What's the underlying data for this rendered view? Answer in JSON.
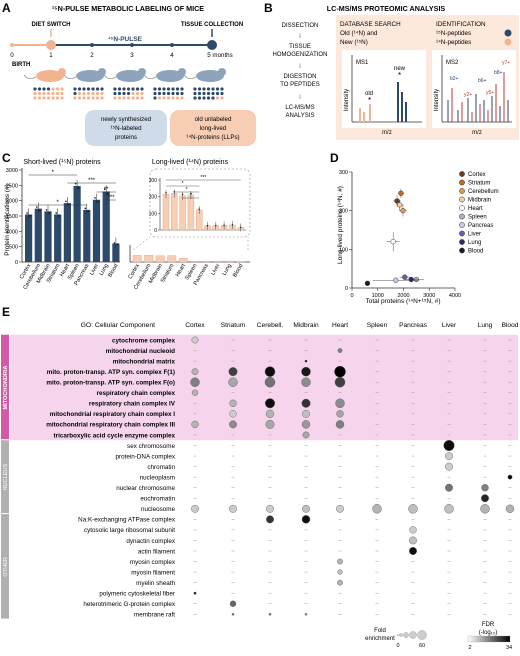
{
  "panel_a": {
    "letter": "A",
    "title": "¹⁵N-PULSE METABOLIC LABELING OF MICE",
    "diet_switch": "DIET SWITCH",
    "pulse": "¹⁵N-PULSE",
    "tissue_collection": "TISSUE COLLECTION",
    "birth": "BIRTH",
    "timeline": [
      "0",
      "1",
      "2",
      "3",
      "4",
      "5 months"
    ],
    "new_box": [
      "newly synthesized",
      "¹⁵N-labeled",
      "proteins"
    ],
    "old_box": [
      "old unlabeled",
      "long-lived",
      "¹⁴N-proteins (LLPs)"
    ],
    "colors": {
      "new": "#2d4a6b",
      "old": "#f2b48f",
      "old_fill": "#f7cdb3",
      "new_fill": "#cfdbe8"
    }
  },
  "panel_b": {
    "letter": "B",
    "title": "LC-MS/MS PROTEOMIC ANALYSIS",
    "steps": [
      "DISSECTION",
      "TISSUE",
      "HOMOGENIZATION",
      "DIGESTION",
      "TO PEPTIDES",
      "LC-MS/MS",
      "ANALYSIS"
    ],
    "db_search": [
      "DATABASE SEARCH",
      "Old (¹⁴N) and",
      "New (¹⁵N)"
    ],
    "identification": [
      "IDENTIFICATION",
      "¹⁵N-peptides",
      "¹⁴N-peptides"
    ],
    "ms1": "MS1",
    "ms2": "MS2",
    "old_label": "old",
    "new_label": "new",
    "intensity": "Intensity",
    "mz": "m/z",
    "ions": [
      "b2+",
      "y2+",
      "b6+",
      "y5+",
      "b8+",
      "y7+"
    ]
  },
  "panel_c": {
    "letter": "C",
    "ylabel": "Protein identifications (#)",
    "short_title": "Short-lived (¹⁵N) proteins",
    "long_title": "Long-lived (¹⁴N) proteins",
    "sig": [
      "*",
      "***",
      "**",
      "***",
      "*"
    ],
    "chart_data": {
      "type": "bar",
      "categories": [
        "Cortex",
        "Cerebellum",
        "Midbrain",
        "Striatum",
        "Heart",
        "Spleen",
        "Pancreas",
        "Liver",
        "Lung",
        "Blood"
      ],
      "yticks": [
        "0",
        "500",
        "1000",
        "1500",
        "2000",
        "2500",
        "3000"
      ],
      "ylim": [
        0,
        3000
      ],
      "inset_yticks": [
        "0",
        "100",
        "200",
        "300"
      ],
      "inset_ylim": [
        0,
        300
      ],
      "series": [
        {
          "values": [
            1550,
            1740,
            1650,
            1550,
            1920,
            2480,
            1700,
            2030,
            2300,
            600
          ]
        },
        {
          "values": [
            215,
            220,
            205,
            210,
            120,
            25,
            25,
            28,
            30,
            15
          ]
        }
      ]
    }
  },
  "panel_d": {
    "letter": "D",
    "xlabel": "Total proteins (¹⁴N+¹⁵N, #)",
    "ylabel": "Long-lived proteins (¹⁴N, #)",
    "chart_data": {
      "type": "scatter",
      "xticks": [
        "0",
        "1000",
        "2000",
        "3000",
        "4000"
      ],
      "yticks": [
        "0",
        "100",
        "200",
        "300"
      ],
      "xlim": [
        0,
        4000
      ],
      "ylim": [
        0,
        300
      ],
      "legend_position": "right",
      "series": [
        {
          "name": "Cortex",
          "color": "#6b3d1d",
          "x": 1750,
          "y": 225,
          "xerr": 150,
          "yerr": 15
        },
        {
          "name": "Striatum",
          "color": "#c06820",
          "x": 1900,
          "y": 245,
          "xerr": 120,
          "yerr": 12
        },
        {
          "name": "Cerebellum",
          "color": "#e09a4a",
          "x": 1980,
          "y": 200,
          "xerr": 150,
          "yerr": 15
        },
        {
          "name": "Midbrain",
          "color": "#f4cfa0",
          "x": 1850,
          "y": 215,
          "xerr": 140,
          "yerr": 14
        },
        {
          "name": "Heart",
          "color": "#ffffff",
          "x": 1600,
          "y": 120,
          "xerr": 250,
          "yerr": 25
        },
        {
          "name": "Spleen",
          "color": "#aab4c8",
          "x": 2500,
          "y": 22,
          "xerr": 300,
          "yerr": 5
        },
        {
          "name": "Pancreas",
          "color": "#c5cbe6",
          "x": 1700,
          "y": 20,
          "xerr": 900,
          "yerr": 5
        },
        {
          "name": "Liver",
          "color": "#6a5fa8",
          "x": 2050,
          "y": 28,
          "xerr": 200,
          "yerr": 5
        },
        {
          "name": "Lung",
          "color": "#2e2a6b",
          "x": 2300,
          "y": 22,
          "xerr": 300,
          "yerr": 5
        },
        {
          "name": "Blood",
          "color": "#1a1a2e",
          "x": 600,
          "y": 12,
          "xerr": 50,
          "yerr": 3
        }
      ]
    }
  },
  "panel_e": {
    "letter": "E",
    "header": "GO: Cellular Component",
    "columns": [
      "Cortex",
      "Striatum",
      "Cerebell.",
      "Midbrain",
      "Heart",
      "Spleen",
      "Pancreas",
      "Liver",
      "Lung",
      "Blood"
    ],
    "groups": [
      {
        "label": "MITOCHONDRIA",
        "color": "#d657a8",
        "bg": "#f6d5ec"
      },
      {
        "label": "NUCLEUS",
        "color": "#b0b0b0",
        "bg": "#ffffff"
      },
      {
        "label": "OTHER",
        "color": "#b0b0b0",
        "bg": "#ffffff"
      }
    ],
    "rows": [
      {
        "term": "cytochrome complex",
        "bold": true,
        "group": 0,
        "cells": [
          [
            0,
            0.5,
            0.2
          ]
        ]
      },
      {
        "term": "mitochondrial nucleoid",
        "bold": true,
        "group": 0,
        "cells": [
          [
            4,
            0.3,
            0.5
          ]
        ]
      },
      {
        "term": "mitochondrial matrix",
        "bold": true,
        "group": 0,
        "cells": [
          [
            3,
            0.1,
            0.9
          ]
        ]
      },
      {
        "term": "mito. proton-transp. ATP syn. complex F(1)",
        "bold": true,
        "group": 0,
        "cells": [
          [
            0,
            0.5,
            0.3
          ],
          [
            1,
            0.7,
            0.75
          ],
          [
            2,
            0.85,
            0.95
          ],
          [
            3,
            0.75,
            0.9
          ],
          [
            4,
            0.95,
            1.0
          ]
        ]
      },
      {
        "term": "mito. proton-transp. ATP syn. complex F(o)",
        "bold": true,
        "group": 0,
        "cells": [
          [
            0,
            0.75,
            0.5
          ],
          [
            1,
            0.75,
            0.35
          ],
          [
            2,
            0.85,
            0.55
          ],
          [
            3,
            0.75,
            0.45
          ],
          [
            4,
            0.85,
            0.75
          ]
        ]
      },
      {
        "term": "respiratory chain complex",
        "bold": true,
        "group": 0,
        "cells": [
          [
            0,
            0.45,
            0.3
          ]
        ]
      },
      {
        "term": "respiratory chain complex IV",
        "bold": true,
        "group": 0,
        "cells": [
          [
            1,
            0.55,
            0.3
          ],
          [
            2,
            0.8,
            0.95
          ],
          [
            3,
            0.7,
            0.8
          ],
          [
            4,
            0.75,
            0.45
          ]
        ]
      },
      {
        "term": "mitochondrial respiratory chain complex I",
        "bold": true,
        "group": 0,
        "cells": [
          [
            1,
            0.55,
            0.2
          ],
          [
            2,
            0.65,
            0.3
          ],
          [
            3,
            0.6,
            0.25
          ],
          [
            4,
            0.55,
            0.35
          ]
        ]
      },
      {
        "term": "mitochondrial respiratory chain complex III",
        "bold": true,
        "group": 0,
        "cells": [
          [
            0,
            0.55,
            0.3
          ],
          [
            1,
            0.6,
            0.45
          ],
          [
            2,
            0.7,
            0.35
          ],
          [
            3,
            0.65,
            0.4
          ],
          [
            4,
            0.65,
            0.5
          ]
        ]
      },
      {
        "term": "tricarboxylic acid cycle enzyme complex",
        "bold": true,
        "group": 0,
        "cells": [
          [
            3,
            0.5,
            0.35
          ]
        ]
      },
      {
        "term": "sex chromosome",
        "bold": false,
        "group": 1,
        "cells": [
          [
            7,
            0.9,
            0.95
          ]
        ]
      },
      {
        "term": "protein-DNA complex",
        "bold": false,
        "group": 1,
        "cells": [
          [
            7,
            0.6,
            0.2
          ]
        ]
      },
      {
        "term": "chromatin",
        "bold": false,
        "group": 1,
        "cells": [
          [
            7,
            0.6,
            0.2
          ]
        ]
      },
      {
        "term": "nucleoplasm",
        "bold": false,
        "group": 1,
        "cells": [
          [
            9,
            0.3,
            0.95
          ]
        ]
      },
      {
        "term": "nuclear chromosome",
        "bold": false,
        "group": 1,
        "cells": [
          [
            7,
            0.6,
            0.55
          ],
          [
            8,
            0.55,
            0.5
          ]
        ]
      },
      {
        "term": "euchromatin",
        "bold": false,
        "group": 1,
        "cells": [
          [
            8,
            0.6,
            0.85
          ]
        ]
      },
      {
        "term": "nucleosome",
        "bold": false,
        "group": 1,
        "cells": [
          [
            0,
            0.6,
            0.2
          ],
          [
            1,
            0.6,
            0.2
          ],
          [
            2,
            0.6,
            0.2
          ],
          [
            3,
            0.6,
            0.25
          ],
          [
            4,
            0.6,
            0.2
          ],
          [
            5,
            0.75,
            0.3
          ],
          [
            6,
            0.75,
            0.25
          ],
          [
            7,
            0.75,
            0.25
          ],
          [
            8,
            0.75,
            0.3
          ],
          [
            9,
            0.65,
            0.3
          ]
        ]
      },
      {
        "term": "Na:K-exchanging ATPase complex",
        "bold": false,
        "group": 2,
        "cells": [
          [
            2,
            0.6,
            0.8
          ],
          [
            3,
            0.65,
            0.95
          ]
        ]
      },
      {
        "term": "cytosolic large ribosomal subunit",
        "bold": false,
        "group": 2,
        "cells": [
          [
            6,
            0.55,
            0.2
          ]
        ]
      },
      {
        "term": "dynactin complex",
        "bold": false,
        "group": 2,
        "cells": [
          [
            6,
            0.6,
            0.25
          ]
        ]
      },
      {
        "term": "actin filament",
        "bold": false,
        "group": 2,
        "cells": [
          [
            6,
            0.6,
            0.95
          ]
        ]
      },
      {
        "term": "myosin complex",
        "bold": false,
        "group": 2,
        "cells": [
          [
            4,
            0.4,
            0.3
          ]
        ]
      },
      {
        "term": "myosin filament",
        "bold": false,
        "group": 2,
        "cells": [
          [
            4,
            0.35,
            0.25
          ]
        ]
      },
      {
        "term": "myelin sheath",
        "bold": false,
        "group": 2,
        "cells": [
          [
            4,
            0.4,
            0.3
          ]
        ]
      },
      {
        "term": "polymeric cytoskeletal fiber",
        "bold": false,
        "group": 2,
        "cells": [
          [
            0,
            0.12,
            0.9
          ]
        ]
      },
      {
        "term": "heterotrimeric G-protein complex",
        "bold": false,
        "group": 2,
        "cells": [
          [
            1,
            0.45,
            0.6
          ]
        ]
      },
      {
        "term": "membrane raft",
        "bold": false,
        "group": 2,
        "cells": [
          [
            1,
            0.1,
            0.5
          ],
          [
            2,
            0.1,
            0.5
          ],
          [
            3,
            0.1,
            0.4
          ]
        ]
      }
    ],
    "legend": {
      "fold": [
        "Fold",
        "enrichment"
      ],
      "fold_ticks": [
        "0",
        "60"
      ],
      "fdr": [
        "FDR",
        "(-log₁₀)"
      ],
      "fdr_ticks": [
        "2",
        "34"
      ]
    }
  }
}
